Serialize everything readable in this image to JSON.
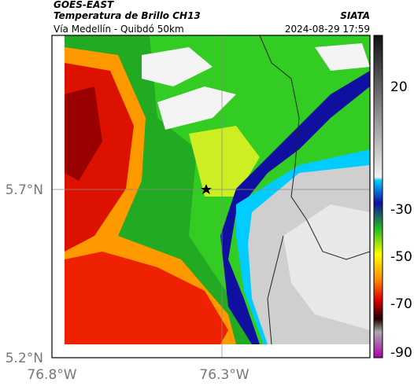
{
  "header": {
    "satellite": "GOES-EAST",
    "product": "Temperatura de Brillo CH13",
    "route": "Vía Medellín - Quibdó 50km",
    "source": "SIATA",
    "datetime": "2024-08-29 17:59"
  },
  "axes": {
    "lat_labels": [
      "5.7°N",
      "5.2°N"
    ],
    "lon_labels": [
      "76.8°W",
      "76.3°W"
    ]
  },
  "colorbar": {
    "ticks": [
      "20",
      "-30",
      "-50",
      "-70",
      "-90"
    ]
  }
}
